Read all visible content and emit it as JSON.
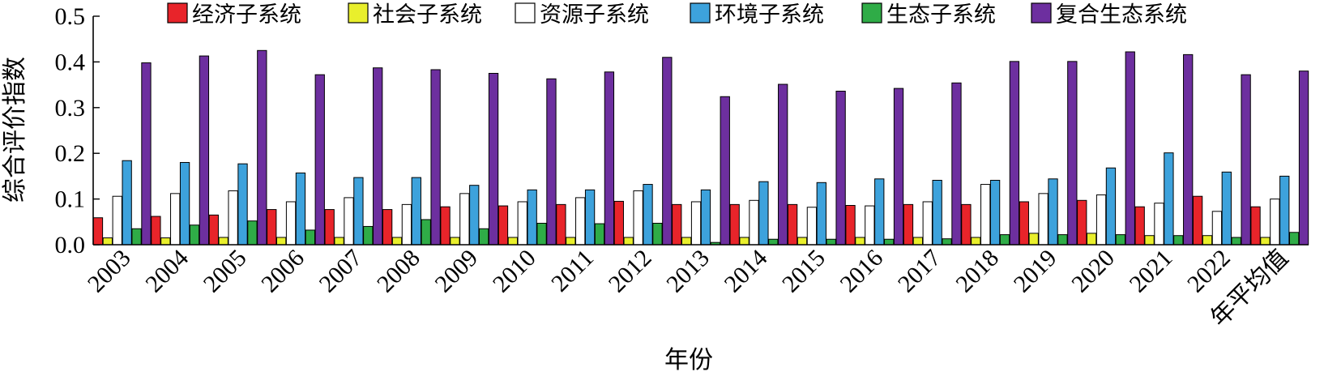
{
  "chart_data": {
    "type": "bar",
    "xlabel": "年份",
    "ylabel": "综合评价指数",
    "ylim": [
      0,
      0.5
    ],
    "yticks": [
      "0.0",
      "0.1",
      "0.2",
      "0.3",
      "0.4",
      "0.5"
    ],
    "grid": false,
    "legend_position": "top",
    "categories": [
      "2003",
      "2004",
      "2005",
      "2006",
      "2007",
      "2008",
      "2009",
      "2010",
      "2011",
      "2012",
      "2013",
      "2014",
      "2015",
      "2016",
      "2017",
      "2018",
      "2019",
      "2020",
      "2021",
      "2022",
      "年平均值"
    ],
    "series": [
      {
        "name": "经济子系统",
        "color": "#e8242a",
        "values": [
          0.059,
          0.062,
          0.065,
          0.077,
          0.077,
          0.077,
          0.083,
          0.085,
          0.088,
          0.095,
          0.088,
          0.088,
          0.088,
          0.086,
          0.088,
          0.088,
          0.094,
          0.097,
          0.083,
          0.106,
          0.083
        ]
      },
      {
        "name": "社会子系统",
        "color": "#e9ef2c",
        "values": [
          0.015,
          0.015,
          0.016,
          0.016,
          0.016,
          0.016,
          0.016,
          0.016,
          0.016,
          0.016,
          0.016,
          0.016,
          0.016,
          0.016,
          0.016,
          0.016,
          0.025,
          0.025,
          0.02,
          0.02,
          0.016
        ]
      },
      {
        "name": "资源子系统",
        "color": "#ffffff",
        "values": [
          0.106,
          0.112,
          0.118,
          0.094,
          0.103,
          0.088,
          0.112,
          0.094,
          0.103,
          0.118,
          0.094,
          0.097,
          0.082,
          0.085,
          0.094,
          0.132,
          0.112,
          0.109,
          0.091,
          0.073,
          0.1
        ]
      },
      {
        "name": "环境子系统",
        "color": "#3da2dc",
        "values": [
          0.184,
          0.18,
          0.177,
          0.157,
          0.147,
          0.147,
          0.13,
          0.12,
          0.12,
          0.132,
          0.12,
          0.138,
          0.136,
          0.144,
          0.141,
          0.141,
          0.144,
          0.168,
          0.201,
          0.159,
          0.15
        ]
      },
      {
        "name": "生态子系统",
        "color": "#2fac47",
        "values": [
          0.035,
          0.043,
          0.052,
          0.032,
          0.04,
          0.055,
          0.035,
          0.047,
          0.046,
          0.047,
          0.005,
          0.012,
          0.012,
          0.012,
          0.013,
          0.022,
          0.022,
          0.022,
          0.02,
          0.016,
          0.027
        ]
      },
      {
        "name": "复合生态系统",
        "color": "#6d2f9f",
        "values": [
          0.398,
          0.413,
          0.425,
          0.372,
          0.387,
          0.383,
          0.375,
          0.363,
          0.378,
          0.41,
          0.324,
          0.351,
          0.336,
          0.342,
          0.354,
          0.401,
          0.401,
          0.422,
          0.416,
          0.372,
          0.38
        ]
      }
    ]
  }
}
